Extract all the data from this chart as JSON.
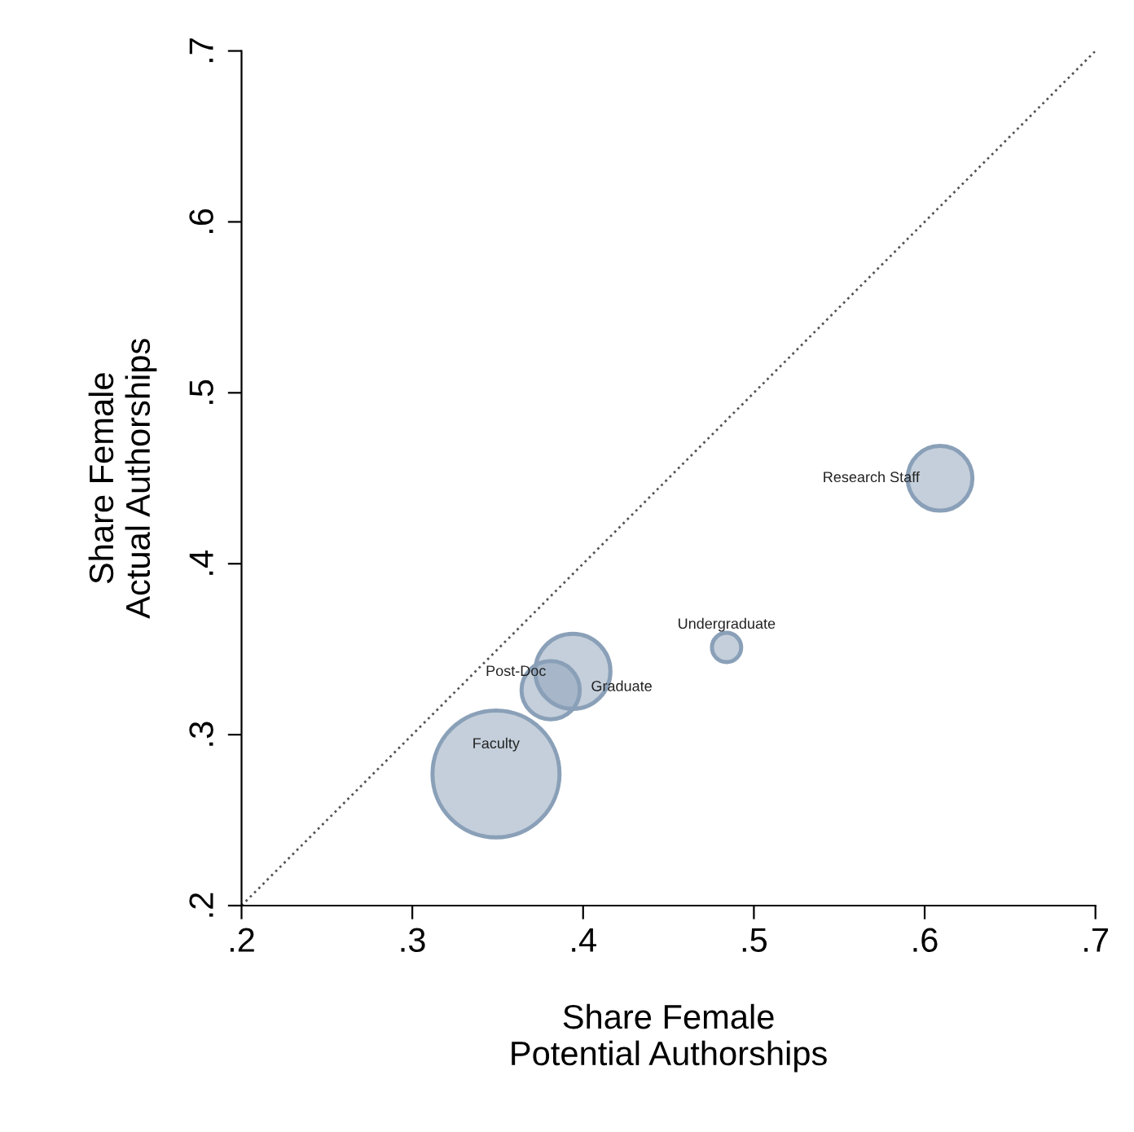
{
  "chart_data": {
    "type": "bubble",
    "xlabel": "Share Female\nPotential Authorships",
    "ylabel": "Share Female\nActual Authorships",
    "xlim": [
      0.2,
      0.7
    ],
    "ylim": [
      0.2,
      0.7
    ],
    "xticks": [
      {
        "value": 0.2,
        "label": ".2"
      },
      {
        "value": 0.3,
        "label": ".3"
      },
      {
        "value": 0.4,
        "label": ".4"
      },
      {
        "value": 0.5,
        "label": ".5"
      },
      {
        "value": 0.6,
        "label": ".6"
      },
      {
        "value": 0.7,
        "label": ".7"
      }
    ],
    "yticks": [
      {
        "value": 0.2,
        "label": ".2"
      },
      {
        "value": 0.3,
        "label": ".3"
      },
      {
        "value": 0.4,
        "label": ".4"
      },
      {
        "value": 0.5,
        "label": ".5"
      },
      {
        "value": 0.6,
        "label": ".6"
      },
      {
        "value": 0.7,
        "label": ".7"
      }
    ],
    "grid": false,
    "legend": false,
    "series": [
      {
        "name": "Faculty",
        "color": "#8aa0b8",
        "x": [
          0.349
        ],
        "values": [
          0.277
        ],
        "sizes": [
          1
        ]
      },
      {
        "name": "Post-Doc",
        "color": "#8aa0b8",
        "x": [
          0.381
        ],
        "values": [
          0.326
        ],
        "sizes": [
          0.21
        ]
      },
      {
        "name": "Graduate",
        "color": "#8aa0b8",
        "x": [
          0.394
        ],
        "values": [
          0.337
        ],
        "sizes": [
          0.35
        ]
      },
      {
        "name": "Undergraduate",
        "color": "#8aa0b8",
        "x": [
          0.484
        ],
        "values": [
          0.351
        ],
        "sizes": [
          0.053
        ]
      },
      {
        "name": "Research Staff",
        "color": "#8aa0b8",
        "x": [
          0.609
        ],
        "values": [
          0.45
        ],
        "sizes": [
          0.26
        ]
      },
      {
        "type": "line",
        "color": "#555555",
        "line_style": "dotted",
        "x": [
          0.2,
          0.7
        ],
        "values": [
          0.2,
          0.7
        ]
      }
    ]
  }
}
